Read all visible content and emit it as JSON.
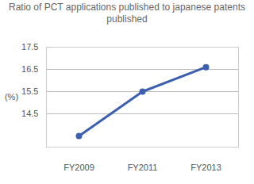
{
  "chart_data": {
    "type": "line",
    "title": "Ratio of PCT applications published to japanese patents published",
    "y_label": "(%)",
    "categories": [
      "FY2009",
      "FY2011",
      "FY2013"
    ],
    "values": [
      13.5,
      15.5,
      16.6
    ],
    "color": "#3d5fb0",
    "marker": "circle",
    "ylim": [
      13,
      17.5
    ],
    "yticks": [
      14.5,
      15.5,
      16.5,
      17.5
    ],
    "grid": true
  }
}
